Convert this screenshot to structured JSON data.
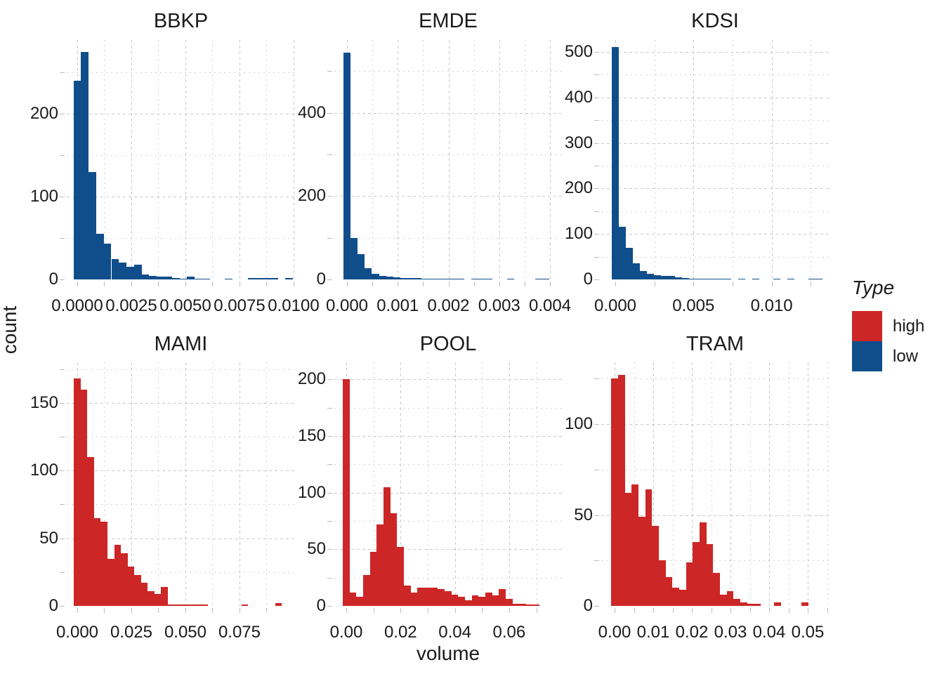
{
  "figure": {
    "ylabel": "count",
    "xlabel": "volume",
    "legend": {
      "title": "Type",
      "items": [
        {
          "label": "high",
          "color": "#CD2626"
        },
        {
          "label": "low",
          "color": "#104E8B"
        }
      ]
    },
    "colors": {
      "grid": "#C9C9C9",
      "tick": "#BDBDBD",
      "text": "#1A1A1A",
      "background": "#FFFFFF"
    }
  },
  "chart_data": [
    {
      "type": "bar",
      "title": "BBKP",
      "group": "low",
      "color": "#104E8B",
      "xlabel": "volume",
      "ylabel": "count",
      "grid": "dashed",
      "legend_position": "right",
      "xlim": [
        -0.000487,
        0.010065
      ],
      "ylim": [
        0,
        289
      ],
      "y_major": [
        {
          "v": 0,
          "label": "0"
        },
        {
          "v": 100,
          "label": "100"
        },
        {
          "v": 200,
          "label": "200"
        }
      ],
      "y_minor": [
        50,
        150,
        250
      ],
      "x_major": [
        {
          "v": 0,
          "label": "0.0000"
        },
        {
          "v": 0.0025,
          "label": "0.0025"
        },
        {
          "v": 0.005,
          "label": "0.0050"
        },
        {
          "v": 0.0075,
          "label": "0.0075"
        },
        {
          "v": 0.01,
          "label": "0.0100"
        }
      ],
      "x_minor": [
        0.00125,
        0.00375,
        0.00625,
        0.00875
      ],
      "bin_start": -0.000175,
      "bin_width": 0.00035,
      "counts": [
        240,
        275,
        130,
        55,
        43,
        25,
        20,
        15,
        18,
        6,
        4,
        3,
        3,
        2,
        1,
        3,
        1,
        1,
        0,
        0,
        1,
        0,
        0,
        2,
        2,
        2,
        2,
        0,
        2,
        0
      ]
    },
    {
      "type": "bar",
      "title": "EMDE",
      "group": "low",
      "color": "#104E8B",
      "xlabel": "volume",
      "ylabel": "count",
      "grid": "dashed",
      "legend_position": "right",
      "xlim": [
        -0.000249,
        0.004235
      ],
      "ylim": [
        0,
        575
      ],
      "y_major": [
        {
          "v": 0,
          "label": "0"
        },
        {
          "v": 200,
          "label": "200"
        },
        {
          "v": 400,
          "label": "400"
        }
      ],
      "y_minor": [
        100,
        300,
        500
      ],
      "x_major": [
        {
          "v": 0,
          "label": "0.000"
        },
        {
          "v": 0.001,
          "label": "0.001"
        },
        {
          "v": 0.002,
          "label": "0.002"
        },
        {
          "v": 0.003,
          "label": "0.003"
        },
        {
          "v": 0.004,
          "label": "0.004"
        }
      ],
      "x_minor": [
        0.0005,
        0.0015,
        0.0025,
        0.0035
      ],
      "bin_start": -7e-05,
      "bin_width": 0.00014,
      "counts": [
        545,
        100,
        61,
        27,
        14,
        8,
        6,
        5,
        4,
        3,
        3,
        2,
        2,
        1,
        1,
        1,
        1,
        0,
        1,
        1,
        2,
        0,
        0,
        1,
        0,
        0,
        0,
        2,
        1,
        0
      ]
    },
    {
      "type": "bar",
      "title": "KDSI",
      "group": "low",
      "color": "#104E8B",
      "xlabel": "volume",
      "ylabel": "count",
      "grid": "dashed",
      "legend_position": "right",
      "xlim": [
        -0.000898,
        0.013657
      ],
      "ylim": [
        0,
        526
      ],
      "y_major": [
        {
          "v": 0,
          "label": "0"
        },
        {
          "v": 100,
          "label": "100"
        },
        {
          "v": 200,
          "label": "200"
        },
        {
          "v": 300,
          "label": "300"
        },
        {
          "v": 400,
          "label": "400"
        },
        {
          "v": 500,
          "label": "500"
        }
      ],
      "y_minor": [
        50,
        150,
        250,
        350,
        450,
        550
      ],
      "x_major": [
        {
          "v": 0,
          "label": "0.000"
        },
        {
          "v": 0.005,
          "label": "0.005"
        },
        {
          "v": 0.01,
          "label": "0.010"
        }
      ],
      "x_minor": [
        0.0025,
        0.0075,
        0.0125
      ],
      "bin_start": -0.000225,
      "bin_width": 0.00045,
      "counts": [
        510,
        115,
        70,
        35,
        18,
        12,
        10,
        8,
        8,
        5,
        3,
        2,
        2,
        1,
        1,
        2,
        1,
        0,
        1,
        0,
        1,
        0,
        0,
        1,
        0,
        1,
        0,
        0,
        1,
        2
      ]
    },
    {
      "type": "bar",
      "title": "MAMI",
      "group": "high",
      "color": "#CD2626",
      "xlabel": "volume",
      "ylabel": "count",
      "grid": "dashed",
      "legend_position": "right",
      "xlim": [
        -0.00487,
        0.10066
      ],
      "ylim": [
        0,
        180
      ],
      "y_major": [
        {
          "v": 0,
          "label": "0"
        },
        {
          "v": 50,
          "label": "50"
        },
        {
          "v": 100,
          "label": "100"
        },
        {
          "v": 150,
          "label": "150"
        }
      ],
      "y_minor": [
        25,
        75,
        125,
        175
      ],
      "x_major": [
        {
          "v": 0,
          "label": "0.000"
        },
        {
          "v": 0.025,
          "label": "0.025"
        },
        {
          "v": 0.05,
          "label": "0.050"
        },
        {
          "v": 0.075,
          "label": "0.075"
        }
      ],
      "x_minor": [
        0.0125,
        0.0375,
        0.0625,
        0.0875
      ],
      "bin_start": -0.00155,
      "bin_width": 0.0031,
      "counts": [
        168,
        160,
        110,
        65,
        62,
        35,
        45,
        39,
        29,
        23,
        17,
        11,
        9,
        14,
        1,
        1,
        1,
        1,
        1,
        1,
        0,
        0,
        0,
        0,
        0,
        1,
        0,
        0,
        0,
        0,
        2
      ]
    },
    {
      "type": "bar",
      "title": "POOL",
      "group": "high",
      "color": "#CD2626",
      "xlabel": "volume",
      "ylabel": "count",
      "grid": "dashed",
      "legend_position": "right",
      "xlim": [
        -0.0044,
        0.07943
      ],
      "ylim": [
        0,
        215
      ],
      "y_major": [
        {
          "v": 0,
          "label": "0"
        },
        {
          "v": 50,
          "label": "50"
        },
        {
          "v": 100,
          "label": "100"
        },
        {
          "v": 150,
          "label": "150"
        },
        {
          "v": 200,
          "label": "200"
        }
      ],
      "y_minor": [
        25,
        75,
        125,
        175
      ],
      "x_major": [
        {
          "v": 0,
          "label": "0.00"
        },
        {
          "v": 0.02,
          "label": "0.02"
        },
        {
          "v": 0.04,
          "label": "0.04"
        },
        {
          "v": 0.06,
          "label": "0.06"
        }
      ],
      "x_minor": [
        0.01,
        0.03,
        0.05,
        0.07
      ],
      "bin_start": -0.00125,
      "bin_width": 0.0025,
      "counts": [
        200,
        12,
        8,
        27,
        48,
        72,
        105,
        82,
        52,
        18,
        12,
        16,
        16,
        16,
        15,
        13,
        10,
        8,
        5,
        9,
        8,
        12,
        9,
        15,
        6,
        2,
        2,
        1,
        1,
        0
      ]
    },
    {
      "type": "bar",
      "title": "TRAM",
      "group": "high",
      "color": "#CD2626",
      "xlabel": "volume",
      "ylabel": "count",
      "grid": "dashed",
      "legend_position": "right",
      "xlim": [
        -0.003455,
        0.05545
      ],
      "ylim": [
        0,
        134
      ],
      "y_major": [
        {
          "v": 0,
          "label": "0"
        },
        {
          "v": 50,
          "label": "50"
        },
        {
          "v": 100,
          "label": "100"
        }
      ],
      "y_minor": [
        25,
        75,
        125
      ],
      "x_major": [
        {
          "v": 0,
          "label": "0.00"
        },
        {
          "v": 0.01,
          "label": "0.01"
        },
        {
          "v": 0.02,
          "label": "0.02"
        },
        {
          "v": 0.03,
          "label": "0.03"
        },
        {
          "v": 0.04,
          "label": "0.04"
        },
        {
          "v": 0.05,
          "label": "0.05"
        }
      ],
      "x_minor": [
        0.005,
        0.015,
        0.025,
        0.035,
        0.045,
        0.055
      ],
      "bin_start": -0.00088,
      "bin_width": 0.00176,
      "counts": [
        125,
        127,
        62,
        67,
        49,
        64,
        44,
        25,
        16,
        10,
        9,
        24,
        35,
        46,
        34,
        18,
        6,
        8,
        4,
        2,
        1,
        1,
        0,
        0,
        2,
        0,
        0,
        0,
        2,
        0
      ]
    }
  ]
}
